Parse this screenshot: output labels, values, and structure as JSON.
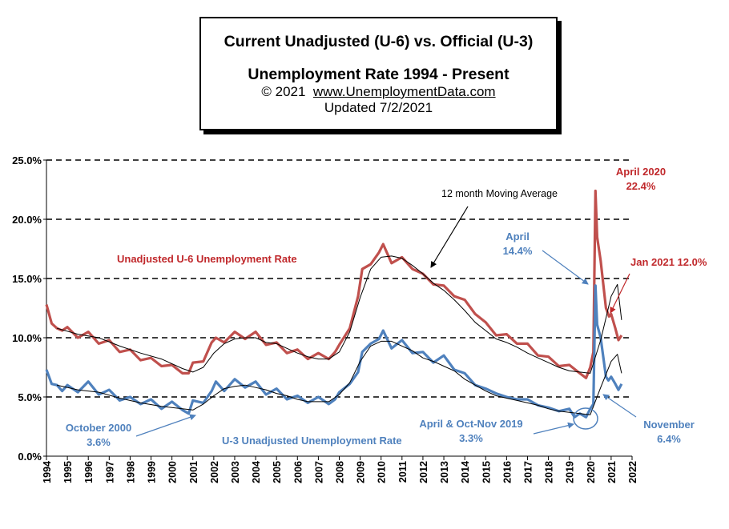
{
  "title": {
    "line1": "Current Unadjusted (U-6) vs. Official (U-3)",
    "line2": "Unemployment Rate 1994 - Present",
    "copyright": "© 2021",
    "site": "www.UnemploymentData.com",
    "updated": "Updated 7/2/2021"
  },
  "colors": {
    "u6": "#c0504d",
    "u3": "#4f81bd",
    "u6_text": "#c0282b",
    "u3_text": "#4f81bd",
    "moving_avg": "#000000"
  },
  "chart_data": {
    "type": "line",
    "title": "Current Unadjusted (U-6) vs. Official (U-3) Unemployment Rate 1994 - Present",
    "xlabel": "",
    "ylabel": "",
    "ylim": [
      0,
      25
    ],
    "xlim": [
      1994,
      2022
    ],
    "grid": "horizontal dashed",
    "y_ticks": [
      "0.0%",
      "5.0%",
      "10.0%",
      "15.0%",
      "20.0%",
      "25.0%"
    ],
    "x_ticks": [
      "1994",
      "1995",
      "1996",
      "1997",
      "1998",
      "1999",
      "2000",
      "2001",
      "2002",
      "2003",
      "2004",
      "2005",
      "2006",
      "2007",
      "2008",
      "2009",
      "2010",
      "2011",
      "2012",
      "2013",
      "2014",
      "2015",
      "2016",
      "2017",
      "2018",
      "2019",
      "2020",
      "2021",
      "2022"
    ],
    "series": [
      {
        "name": "Unadjusted U-6 Unemployment Rate",
        "x": [
          1994.0,
          1994.25,
          1994.5,
          1994.75,
          1995.0,
          1995.5,
          1996.0,
          1996.5,
          1997.0,
          1997.5,
          1998.0,
          1998.5,
          1999.0,
          1999.5,
          2000.0,
          2000.5,
          2000.8,
          2001.0,
          2001.5,
          2001.9,
          2002.1,
          2002.5,
          2003.0,
          2003.5,
          2004.0,
          2004.5,
          2005.0,
          2005.5,
          2006.0,
          2006.5,
          2007.0,
          2007.5,
          2007.8,
          2008.0,
          2008.5,
          2008.9,
          2009.1,
          2009.5,
          2009.9,
          2010.1,
          2010.5,
          2011.0,
          2011.5,
          2012.0,
          2012.5,
          2013.0,
          2013.5,
          2014.0,
          2014.5,
          2015.0,
          2015.5,
          2016.0,
          2016.5,
          2017.0,
          2017.5,
          2018.0,
          2018.5,
          2019.0,
          2019.5,
          2019.8,
          2020.0,
          2020.15,
          2020.25,
          2020.33,
          2020.5,
          2020.75,
          2020.9,
          2021.0,
          2021.2,
          2021.35,
          2021.5
        ],
        "y": [
          12.8,
          11.2,
          10.8,
          10.6,
          10.9,
          10.0,
          10.5,
          9.5,
          9.8,
          8.8,
          9.0,
          8.1,
          8.3,
          7.6,
          7.7,
          7.0,
          7.0,
          7.9,
          8.0,
          9.6,
          10.0,
          9.6,
          10.5,
          9.9,
          10.5,
          9.4,
          9.6,
          8.7,
          9.0,
          8.2,
          8.7,
          8.2,
          8.8,
          9.4,
          10.8,
          13.5,
          15.8,
          16.2,
          17.2,
          17.9,
          16.3,
          16.8,
          15.8,
          15.4,
          14.5,
          14.4,
          13.5,
          13.2,
          12.0,
          11.3,
          10.2,
          10.3,
          9.5,
          9.5,
          8.5,
          8.4,
          7.6,
          7.7,
          7.0,
          6.6,
          7.5,
          8.8,
          22.4,
          18.5,
          16.5,
          12.5,
          11.8,
          12.0,
          10.8,
          9.8,
          10.2
        ]
      },
      {
        "name": "U-3 Unadjusted Unemployment Rate",
        "x": [
          1994.0,
          1994.25,
          1994.5,
          1994.75,
          1995.0,
          1995.5,
          1996.0,
          1996.5,
          1997.0,
          1997.5,
          1998.0,
          1998.5,
          1999.0,
          1999.5,
          2000.0,
          2000.5,
          2000.8,
          2001.0,
          2001.5,
          2001.9,
          2002.1,
          2002.5,
          2003.0,
          2003.5,
          2004.0,
          2004.5,
          2005.0,
          2005.5,
          2006.0,
          2006.5,
          2007.0,
          2007.5,
          2007.8,
          2008.0,
          2008.5,
          2008.9,
          2009.1,
          2009.5,
          2009.9,
          2010.1,
          2010.5,
          2011.0,
          2011.5,
          2012.0,
          2012.5,
          2013.0,
          2013.5,
          2014.0,
          2014.5,
          2015.0,
          2015.5,
          2016.0,
          2016.5,
          2017.0,
          2017.5,
          2018.0,
          2018.5,
          2019.0,
          2019.25,
          2019.5,
          2019.8,
          2020.0,
          2020.15,
          2020.25,
          2020.33,
          2020.5,
          2020.75,
          2020.87,
          2021.0,
          2021.2,
          2021.35,
          2021.5
        ],
        "y": [
          7.3,
          6.1,
          6.0,
          5.5,
          6.0,
          5.4,
          6.3,
          5.2,
          5.6,
          4.7,
          5.0,
          4.4,
          4.8,
          4.0,
          4.6,
          3.9,
          3.6,
          4.7,
          4.5,
          5.5,
          6.3,
          5.5,
          6.5,
          5.8,
          6.3,
          5.2,
          5.7,
          4.8,
          5.1,
          4.5,
          5.0,
          4.4,
          4.8,
          5.4,
          6.1,
          7.1,
          8.8,
          9.5,
          9.9,
          10.6,
          9.1,
          9.8,
          8.7,
          8.8,
          7.9,
          8.5,
          7.3,
          7.0,
          6.0,
          5.7,
          5.3,
          5.0,
          4.8,
          4.8,
          4.3,
          4.1,
          3.8,
          4.0,
          3.3,
          3.6,
          3.3,
          4.0,
          4.4,
          14.4,
          11.1,
          10.0,
          6.7,
          6.4,
          6.7,
          6.1,
          5.6,
          6.1
        ]
      },
      {
        "name": "U-6 12 month Moving Average",
        "x": [
          1994.5,
          1995.5,
          1996.5,
          1997.5,
          1998.5,
          1999.5,
          2000.5,
          2001.0,
          2001.5,
          2002.0,
          2002.5,
          2003.0,
          2003.5,
          2004.0,
          2004.5,
          2005.0,
          2005.5,
          2006.0,
          2006.5,
          2007.0,
          2007.5,
          2008.0,
          2008.5,
          2009.0,
          2009.5,
          2010.0,
          2010.5,
          2011.0,
          2011.5,
          2012.0,
          2012.5,
          2013.0,
          2013.5,
          2014.0,
          2014.5,
          2015.0,
          2015.5,
          2016.0,
          2016.5,
          2017.0,
          2017.5,
          2018.0,
          2018.5,
          2019.0,
          2019.5,
          2020.0,
          2020.5,
          2021.0,
          2021.3,
          2021.5
        ],
        "y": [
          10.8,
          10.3,
          10.0,
          9.3,
          8.7,
          8.2,
          7.4,
          7.1,
          7.5,
          8.7,
          9.5,
          9.9,
          10.0,
          10.0,
          9.6,
          9.5,
          9.1,
          8.7,
          8.4,
          8.2,
          8.2,
          8.8,
          10.5,
          13.4,
          15.8,
          16.8,
          16.9,
          16.7,
          16.1,
          15.4,
          14.6,
          14.0,
          13.2,
          12.3,
          11.3,
          10.6,
          9.9,
          9.6,
          9.2,
          8.7,
          8.3,
          7.9,
          7.5,
          7.2,
          7.1,
          7.0,
          9.8,
          13.5,
          14.5,
          11.5
        ]
      },
      {
        "name": "U-3 12 month Moving Average",
        "x": [
          1994.5,
          1995.5,
          1996.5,
          1997.5,
          1998.5,
          1999.5,
          2000.5,
          2001.0,
          2001.5,
          2002.0,
          2002.5,
          2003.0,
          2003.5,
          2004.0,
          2004.5,
          2005.0,
          2005.5,
          2006.0,
          2006.5,
          2007.0,
          2007.5,
          2008.0,
          2008.5,
          2009.0,
          2009.5,
          2010.0,
          2010.5,
          2011.0,
          2011.5,
          2012.0,
          2012.5,
          2013.0,
          2013.5,
          2014.0,
          2014.5,
          2015.0,
          2015.5,
          2016.0,
          2016.5,
          2017.0,
          2017.5,
          2018.0,
          2018.5,
          2019.0,
          2019.5,
          2020.0,
          2020.5,
          2021.0,
          2021.3,
          2021.5
        ],
        "y": [
          6.0,
          5.6,
          5.4,
          4.9,
          4.5,
          4.2,
          4.0,
          3.9,
          4.4,
          5.1,
          5.7,
          5.9,
          6.0,
          5.8,
          5.6,
          5.3,
          5.1,
          4.8,
          4.6,
          4.6,
          4.6,
          5.2,
          6.2,
          8.0,
          9.3,
          9.7,
          9.7,
          9.3,
          8.9,
          8.3,
          8.0,
          7.6,
          7.2,
          6.5,
          6.0,
          5.5,
          5.1,
          4.9,
          4.7,
          4.5,
          4.3,
          4.0,
          3.8,
          3.7,
          3.6,
          3.5,
          5.8,
          8.0,
          8.6,
          7.0
        ]
      }
    ],
    "annotations": [
      {
        "id": "april2020",
        "lines": [
          "April 2020",
          "22.4%"
        ]
      },
      {
        "id": "jan2021",
        "lines": [
          "Jan 2021     12.0%"
        ]
      },
      {
        "id": "april14",
        "lines": [
          "April",
          "14.4%"
        ]
      },
      {
        "id": "u6label",
        "lines": [
          "Unadjusted U-6 Unemployment Rate"
        ]
      },
      {
        "id": "mavg",
        "lines": [
          "12 month Moving Average"
        ]
      },
      {
        "id": "oct2000",
        "lines": [
          "October 2000",
          "3.6%"
        ]
      },
      {
        "id": "u3label",
        "lines": [
          "U-3  Unadjusted Unemployment Rate"
        ]
      },
      {
        "id": "aproct2019",
        "lines": [
          "April & Oct-Nov  2019",
          "3.3%"
        ]
      },
      {
        "id": "november",
        "lines": [
          "November",
          "6.4%"
        ]
      }
    ]
  }
}
